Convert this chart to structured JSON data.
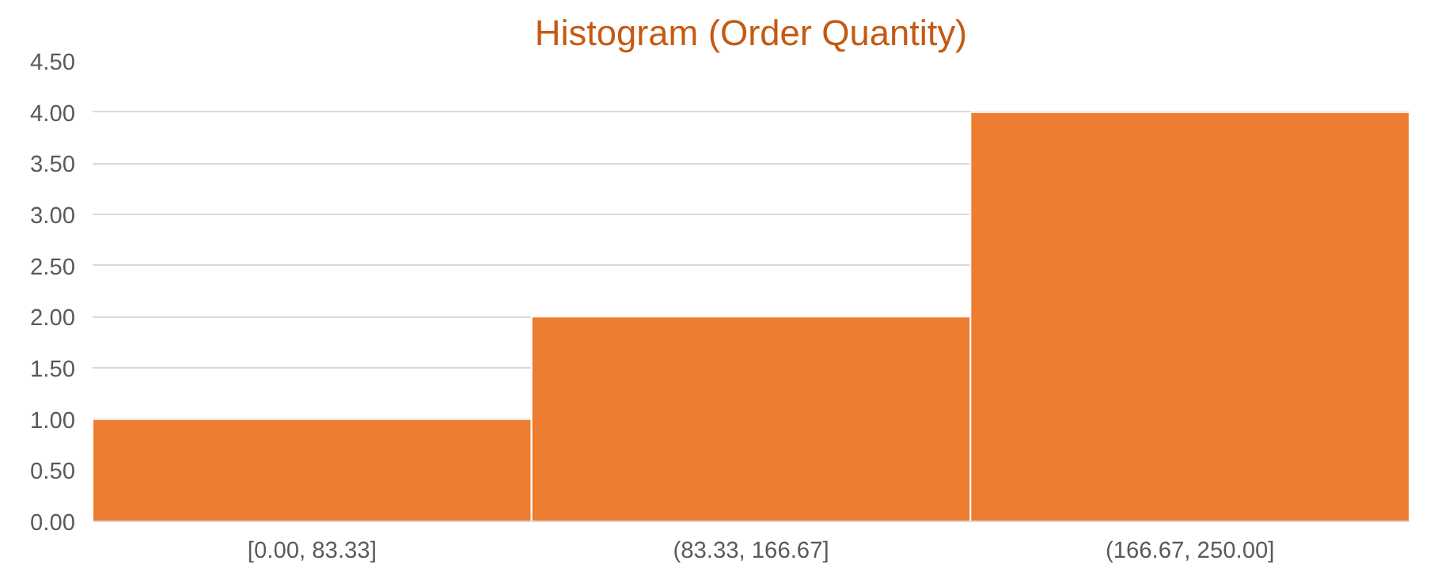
{
  "chart_data": {
    "type": "bar",
    "title": "Histogram (Order Quantity)",
    "categories": [
      "[0.00, 83.33]",
      "(83.33, 166.67]",
      "(166.67, 250.00]"
    ],
    "values": [
      1,
      2,
      4
    ],
    "color": "#ed7d31",
    "ylim": [
      0,
      4.5
    ],
    "yticks": [
      {
        "value": 0,
        "label": "0.00"
      },
      {
        "value": 0.5,
        "label": "0.50"
      },
      {
        "value": 1,
        "label": "1.00"
      },
      {
        "value": 1.5,
        "label": "1.50"
      },
      {
        "value": 2,
        "label": "2.00"
      },
      {
        "value": 2.5,
        "label": "2.50"
      },
      {
        "value": 3,
        "label": "3.00"
      },
      {
        "value": 3.5,
        "label": "3.50"
      },
      {
        "value": 4,
        "label": "4.00"
      },
      {
        "value": 4.5,
        "label": "4.50"
      }
    ],
    "grid": "y"
  }
}
